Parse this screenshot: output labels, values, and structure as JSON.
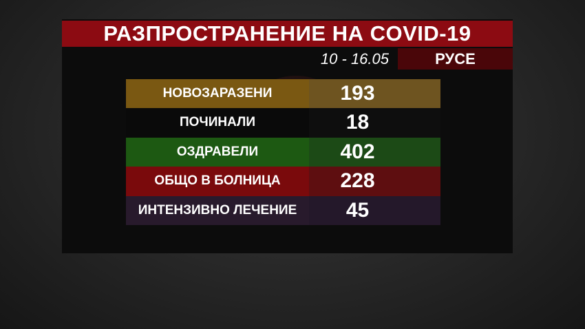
{
  "title": "РАЗПРОСТРАНЕНИЕ НА COVID-19",
  "date_range": "10 - 16.05",
  "city": "РУСЕ",
  "rows": [
    {
      "label": "НОВОЗАРАЗЕНИ",
      "value": "193",
      "color": "#7a5812",
      "value_color": "#6e5420"
    },
    {
      "label": "ПОЧИНАЛИ",
      "value": "18",
      "color": "#0a0a0a",
      "value_color": "#0e0e0e"
    },
    {
      "label": "ОЗДРАВЕЛИ",
      "value": "402",
      "color": "#1d5912",
      "value_color": "#1c4a16"
    },
    {
      "label": "ОБЩО В БОЛНИЦА",
      "value": "228",
      "color": "#7a0a0c",
      "value_color": "#5e0e10"
    },
    {
      "label": "ИНТЕНЗИВНО ЛЕЧЕНИЕ",
      "value": "45",
      "color": "#281a2c",
      "value_color": "#24182a"
    }
  ]
}
